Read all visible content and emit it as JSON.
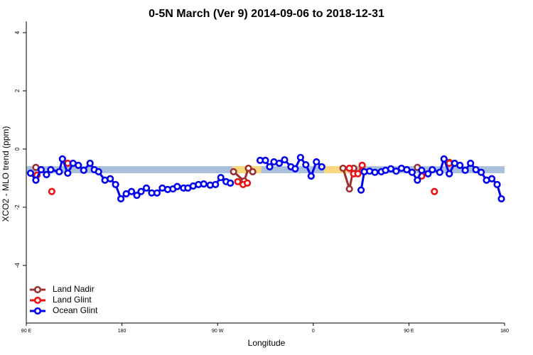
{
  "chart_data": {
    "type": "line",
    "title": "0-5N March (Ver 9)   2014-09-06 to 2018-12-31",
    "xlabel": "Longitude",
    "ylabel": "XCO2 - MLO trend (ppm)",
    "xlim": [
      90,
      540
    ],
    "ylim": [
      -5.98,
      4.39
    ],
    "xticks": [
      {
        "value": 90,
        "label": "90 E"
      },
      180,
      {
        "value": 270,
        "label": "90 W"
      },
      {
        "value": 360,
        "label": "0"
      },
      {
        "value": 450,
        "label": "90 E"
      },
      {
        "value": 540,
        "label": "180"
      }
    ],
    "yticks": [
      -4,
      -2,
      0,
      2,
      4
    ],
    "legend": "bottom-left",
    "bands": [
      {
        "x": [
          90,
          540
        ],
        "y": [
          -0.83,
          -0.59
        ],
        "color": "#a9bfdc"
      },
      {
        "x": [
          284,
          311
        ],
        "y": [
          -0.83,
          -0.59
        ],
        "color": "#fbd87e"
      },
      {
        "x": [
          370,
          393
        ],
        "y": [
          -0.83,
          -0.59
        ],
        "color": "#fbd87e"
      }
    ],
    "series": [
      {
        "name": "Land Nadir",
        "color": "#9a3232",
        "x": [
          99,
          200,
          285,
          295,
          299,
          303,
          350,
          388,
          394,
          398,
          430,
          458,
          470,
          488
        ],
        "values": [
          -0.63,
          null,
          -0.78,
          -1.1,
          -0.66,
          -0.78,
          null,
          -0.66,
          -1.37,
          -0.66,
          null,
          -0.63,
          null,
          -0.46
        ]
      },
      {
        "name": "Land Glint",
        "color": "#ee1111",
        "x": [
          100,
          107,
          114,
          120,
          129,
          200,
          289,
          294,
          298,
          350,
          394,
          398,
          402,
          406,
          430,
          462,
          468,
          474,
          480,
          488
        ],
        "values": [
          -0.9,
          null,
          -1.46,
          null,
          -0.49,
          null,
          -1.12,
          -1.22,
          -1.17,
          null,
          -0.66,
          -0.85,
          -0.85,
          -0.56,
          null,
          -0.93,
          null,
          -1.46,
          null,
          -0.49
        ]
      },
      {
        "name": "Ocean Glint",
        "color": "#0000ee",
        "x": [
          94,
          99,
          104,
          109,
          113,
          121,
          124,
          129,
          134,
          139,
          144,
          150,
          154,
          158,
          164,
          169,
          174,
          179,
          184,
          189,
          194,
          198,
          203,
          208,
          213,
          218,
          223,
          228,
          232,
          238,
          242,
          247,
          252,
          257,
          263,
          268,
          273,
          278,
          282,
          296,
          310,
          315,
          319,
          323,
          328,
          333,
          339,
          343,
          348,
          353,
          358,
          363,
          368,
          386,
          405,
          408,
          413,
          418,
          424,
          428,
          433,
          438,
          443,
          448,
          453,
          458,
          462,
          468,
          472,
          479,
          483,
          488,
          493,
          498,
          503,
          508,
          513,
          518,
          523,
          528,
          533,
          537
        ],
        "values": [
          -0.83,
          -1.07,
          -0.71,
          -0.88,
          -0.71,
          -0.78,
          -0.34,
          -0.83,
          -0.49,
          -0.56,
          -0.73,
          -0.49,
          -0.71,
          -0.78,
          -1.07,
          -1.02,
          -1.22,
          -1.71,
          -1.54,
          -1.46,
          -1.59,
          -1.46,
          -1.34,
          -1.51,
          -1.51,
          -1.34,
          -1.39,
          -1.37,
          -1.29,
          -1.34,
          -1.34,
          -1.27,
          -1.22,
          -1.2,
          -1.24,
          -1.22,
          -0.98,
          -1.12,
          -1.17,
          null,
          -0.39,
          -0.39,
          -0.61,
          -0.44,
          -0.49,
          -0.37,
          -0.61,
          -0.68,
          -0.29,
          -0.54,
          -0.93,
          -0.44,
          -0.61,
          null,
          -1.41,
          -0.78,
          -0.76,
          -0.8,
          -0.78,
          -0.73,
          -0.68,
          -0.76,
          -0.66,
          -0.71,
          -0.8,
          -1.07,
          -0.73,
          -0.85,
          -0.71,
          -0.8,
          -0.34,
          -0.85,
          -0.49,
          -0.56,
          -0.73,
          -0.49,
          -0.71,
          -0.8,
          -1.07,
          -1.02,
          -1.22,
          -1.71
        ]
      }
    ]
  }
}
